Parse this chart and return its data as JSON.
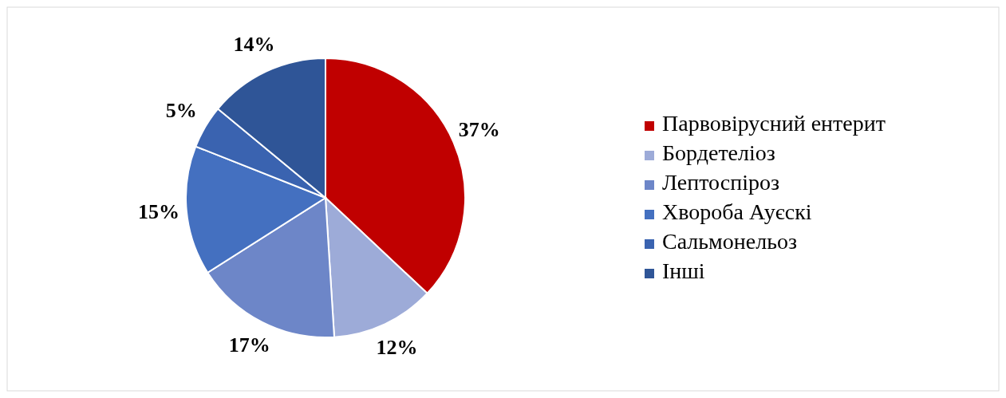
{
  "chart_data": {
    "type": "pie",
    "categories": [
      "Парвовірусний ентерит",
      "Бордетеліоз",
      "Лептоспіроз",
      "Хвороба Ауєскі",
      "Сальмонельоз",
      "Інші"
    ],
    "values": [
      37,
      12,
      17,
      15,
      5,
      14
    ],
    "value_labels": [
      "37%",
      "12%",
      "17%",
      "15%",
      "5%",
      "14%"
    ],
    "colors": [
      "#c00000",
      "#9dabd8",
      "#6d86c8",
      "#4470c0",
      "#3a63b0",
      "#2f5597"
    ],
    "legend": "right"
  }
}
